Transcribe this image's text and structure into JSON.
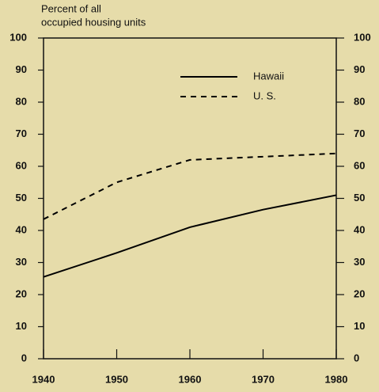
{
  "chart_data": {
    "type": "line",
    "ylabel": [
      "Percent of all",
      "occupied housing units"
    ],
    "x": [
      1940,
      1950,
      1960,
      1970,
      1980
    ],
    "series": [
      {
        "name": "Hawaii",
        "color": "#000000",
        "style": "solid",
        "values": [
          25.5,
          33,
          41,
          46.5,
          51
        ]
      },
      {
        "name": "U. S.",
        "color": "#000000",
        "style": "dashed",
        "values": [
          43.5,
          55,
          62,
          63,
          64
        ]
      }
    ],
    "xlim": [
      1940,
      1980
    ],
    "xticks": [
      1940,
      1950,
      1960,
      1970,
      1980
    ],
    "ylim": [
      0,
      100
    ],
    "yticks": [
      0,
      10,
      20,
      30,
      40,
      50,
      60,
      70,
      80,
      90,
      100
    ],
    "y2lim": [
      0,
      100
    ],
    "y2ticks": [
      0,
      10,
      20,
      30,
      40,
      50,
      60,
      70,
      80,
      90,
      100
    ],
    "legend": "upper right"
  }
}
